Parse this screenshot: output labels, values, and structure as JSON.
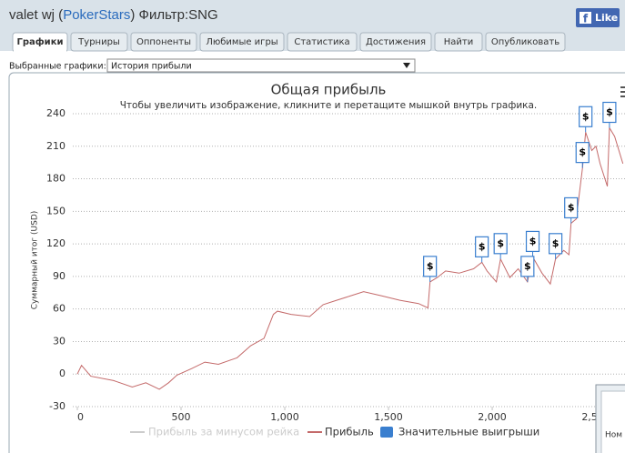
{
  "header": {
    "user": "valet wj (",
    "site": "PokerStars",
    "filter": ") Фильтр:SNG"
  },
  "facebook": {
    "icon": "f",
    "label": "Like"
  },
  "tabs": [
    "Графики",
    "Турниры",
    "Оппоненты",
    "Любимые игры",
    "Статистика",
    "Достижения",
    "Найти",
    "Опубликовать"
  ],
  "selector": {
    "label": "Выбранные графики:",
    "value": "История прибыли"
  },
  "chart_data": {
    "type": "line",
    "title": "Общая прибыль",
    "subtitle": "Чтобы увеличить изображение, кликните и перетащите мышкой внутрь графика.",
    "ylabel": "Суммарный итог (USD)",
    "xlim": [
      0,
      2640
    ],
    "ylim": [
      -30,
      240
    ],
    "xticks": [
      0,
      500,
      {
        "value": 1000,
        "label": "1,000"
      },
      {
        "value": 1500,
        "label": "1,500"
      },
      {
        "value": 2000,
        "label": "2,000"
      },
      {
        "value": 2500,
        "label": "2,500"
      }
    ],
    "yticks": [
      -30,
      0,
      30,
      60,
      90,
      120,
      150,
      180,
      210,
      240
    ],
    "grid": true,
    "series": [
      {
        "name": "Прибыль за минусом рейка",
        "color": "#cccccc",
        "hidden": true
      },
      {
        "name": "Прибыль",
        "color": "#c46a6a",
        "x": [
          0,
          20,
          65,
          175,
          265,
          330,
          395,
          440,
          480,
          550,
          615,
          680,
          770,
          835,
          900,
          945,
          965,
          1030,
          1120,
          1185,
          1250,
          1315,
          1380,
          1470,
          1555,
          1645,
          1690,
          1700,
          1735,
          1775,
          1840,
          1910,
          1950,
          1975,
          2020,
          2040,
          2085,
          2125,
          2170,
          2195,
          2240,
          2280,
          2305,
          2345,
          2370,
          2380,
          2405,
          2435,
          2450,
          2480,
          2500,
          2520,
          2555,
          2565,
          2590,
          2630
        ],
        "values": [
          0,
          8,
          -2,
          -6,
          -12,
          -8,
          -14,
          -8,
          -1,
          5,
          11,
          9,
          15,
          26,
          33,
          55,
          58,
          55,
          53,
          64,
          68,
          72,
          76,
          72,
          68,
          65,
          61,
          85,
          89,
          95,
          93,
          97,
          103,
          95,
          85,
          106,
          89,
          97,
          85,
          108,
          93,
          83,
          106,
          114,
          110,
          139,
          143,
          190,
          223,
          206,
          210,
          194,
          173,
          227,
          219,
          194
        ]
      },
      {
        "name": "Значительные выигрыши",
        "color": "#3a7fcf",
        "marker": "flag",
        "flag_label": "$",
        "x": [
          1700,
          1950,
          2040,
          2170,
          2195,
          2305,
          2380,
          2435,
          2450,
          2565
        ],
        "values": [
          85,
          103,
          106,
          85,
          108,
          106,
          139,
          190,
          223,
          227
        ]
      }
    ]
  },
  "popup": {
    "text": "Ном"
  }
}
